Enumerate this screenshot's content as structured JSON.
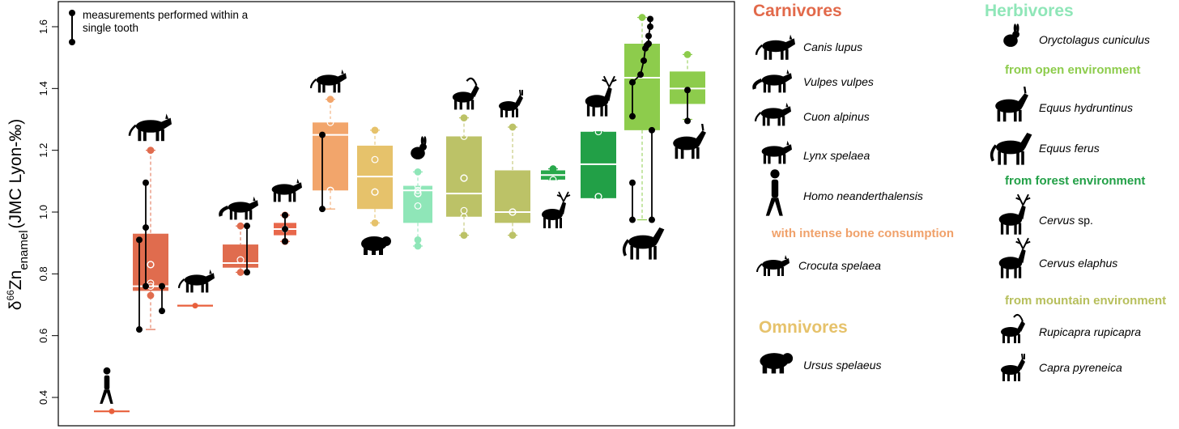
{
  "chart_data": {
    "type": "box",
    "ylabel": "δ66Zn enamel (JMC Lyon-‰)",
    "ylabel_parts": {
      "delta": "δ",
      "iso": "66",
      "el": "Zn",
      "sub": "enamel",
      "unit": "(JMC Lyon-‰)"
    },
    "ylim": [
      0.32,
      1.66
    ],
    "yticks": [
      0.4,
      0.6,
      0.8,
      1.0,
      1.2,
      1.4,
      1.6
    ],
    "ytick_labels": [
      "0.4",
      "0.6",
      "0.8",
      "1.0",
      "1.2",
      "1.4",
      "1.6"
    ],
    "annotation": "measurements performed within a single tooth",
    "series": [
      {
        "taxon": "Homo neanderthalensis",
        "color": "#e8603c",
        "median": 0.355,
        "points": [
          0.355
        ]
      },
      {
        "taxon": "Canis lupus",
        "color": "#e06c4e",
        "q1": 0.745,
        "median": 0.76,
        "q3": 0.93,
        "whisker_low": 0.62,
        "whisker_high": 1.2,
        "mean": 0.83,
        "points": [
          1.2,
          0.77,
          0.73,
          0.76,
          0.83
        ],
        "single_tooth": [
          [
            0.62,
            0.91
          ],
          [
            0.76,
            0.95,
            1.095
          ],
          [
            0.68,
            0.76
          ]
        ]
      },
      {
        "taxon": "Cuon alpinus",
        "color": "#e8603c",
        "median": 0.697,
        "points": [
          0.697
        ]
      },
      {
        "taxon": "Vulpes vulpes",
        "color": "#e06c4e",
        "q1": 0.82,
        "median": 0.835,
        "q3": 0.895,
        "whisker_low": 0.805,
        "whisker_high": 0.955,
        "mean": 0.845,
        "points": [
          0.955,
          0.805
        ],
        "single_tooth": [
          [
            0.805,
            0.955
          ]
        ]
      },
      {
        "taxon": "Lynx spelaea",
        "color": "#e8684b",
        "q1": 0.925,
        "median": 0.945,
        "q3": 0.965,
        "whisker_low": 0.905,
        "whisker_high": 0.99,
        "points": [
          0.99,
          0.945,
          0.905
        ],
        "single_tooth": [
          [
            0.905,
            0.945,
            0.99
          ]
        ]
      },
      {
        "taxon": "Crocuta spelaea",
        "color": "#f2a56b",
        "q1": 1.07,
        "median": 1.25,
        "q3": 1.29,
        "whisker_low": 1.01,
        "whisker_high": 1.365,
        "mean": 1.07,
        "points": [
          1.365,
          1.29,
          1.07
        ],
        "single_tooth": [
          [
            1.01,
            1.25
          ]
        ]
      },
      {
        "taxon": "Ursus spelaeus",
        "color": "#e6c26b",
        "q1": 1.01,
        "median": 1.115,
        "q3": 1.215,
        "whisker_low": 0.965,
        "whisker_high": 1.265,
        "mean": 1.065,
        "points": [
          1.265,
          1.17,
          1.065,
          0.965
        ]
      },
      {
        "taxon": "Oryctolagus cuniculus",
        "color": "#8fe6b8",
        "q1": 0.965,
        "median": 1.07,
        "q3": 1.085,
        "whisker_low": 0.89,
        "whisker_high": 1.13,
        "mean": 1.06,
        "points": [
          1.13,
          1.085,
          1.07,
          1.06,
          1.02,
          0.91,
          0.89
        ]
      },
      {
        "taxon": "Rupicapra rupicapra",
        "color": "#bcc267",
        "q1": 0.985,
        "median": 1.06,
        "q3": 1.245,
        "whisker_low": 0.925,
        "whisker_high": 1.305,
        "mean": 1.11,
        "points": [
          1.305,
          1.245,
          1.11,
          1.005,
          0.985,
          0.925
        ]
      },
      {
        "taxon": "Capra pyreneica",
        "color": "#bcc267",
        "q1": 0.965,
        "median": 1.0,
        "q3": 1.135,
        "whisker_low": 0.925,
        "whisker_high": 1.275,
        "mean": 1.0,
        "points": [
          1.275,
          1.0,
          0.925
        ]
      },
      {
        "taxon": "Cervus sp.",
        "color": "#28a84b",
        "q1": 1.105,
        "median": 1.12,
        "q3": 1.135,
        "whisker_low": 1.105,
        "whisker_high": 1.14,
        "points": [
          1.14,
          1.105
        ]
      },
      {
        "taxon": "Cervus elaphus",
        "color": "#22a047",
        "q1": 1.045,
        "median": 1.155,
        "q3": 1.26,
        "whisker_low": 1.045,
        "whisker_high": 1.26,
        "mean": 1.05,
        "points": [
          1.26,
          1.05
        ]
      },
      {
        "taxon": "Equus ferus",
        "color": "#8dcc4c",
        "q1": 1.265,
        "median": 1.435,
        "q3": 1.545,
        "whisker_low": 0.975,
        "whisker_high": 1.63,
        "points": [
          1.63
        ],
        "single_tooth": [
          [
            1.31,
            1.42,
            1.445,
            1.49,
            1.53,
            1.54,
            1.545,
            1.57,
            1.6,
            1.625
          ],
          [
            0.975,
            1.095
          ],
          [
            0.975,
            1.265
          ]
        ]
      },
      {
        "taxon": "Equus hydruntinus",
        "color": "#8dcc4c",
        "q1": 1.35,
        "median": 1.4,
        "q3": 1.455,
        "whisker_low": 1.3,
        "whisker_high": 1.51,
        "points": [
          1.51
        ],
        "single_tooth": [
          [
            1.295,
            1.395
          ]
        ]
      }
    ]
  },
  "legend": {
    "carnivores": {
      "title": "Carnivores",
      "color": "#e2694a",
      "species": [
        "Canis lupus",
        "Vulpes vulpes",
        "Cuon alpinus",
        "Lynx spelaea",
        "Homo neanderthalensis"
      ],
      "sub_title": "with intense bone consumption",
      "sub_color": "#f0a16a",
      "sub_species": [
        "Crocuta spelaea"
      ]
    },
    "omnivores": {
      "title": "Omnivores",
      "color": "#e6c26b",
      "species": [
        "Ursus spelaeus"
      ]
    },
    "herbivores": {
      "title": "Herbivores",
      "color": "#8fe6b8",
      "species": [
        "Oryctolagus cuniculus"
      ],
      "open": {
        "title": "from open environment",
        "color": "#8dcc4c",
        "species": [
          "Equus hydruntinus",
          "Equus ferus"
        ]
      },
      "forest": {
        "title": "from forest environment",
        "color": "#22a047",
        "species_italic": "Cervus",
        "species_suffix": " sp.",
        "species2": "Cervus elaphus"
      },
      "mountain": {
        "title": "from mountain environment",
        "color": "#b7bf5c",
        "species": [
          "Rupicapra rupicapra",
          "Capra pyreneica"
        ]
      }
    }
  }
}
